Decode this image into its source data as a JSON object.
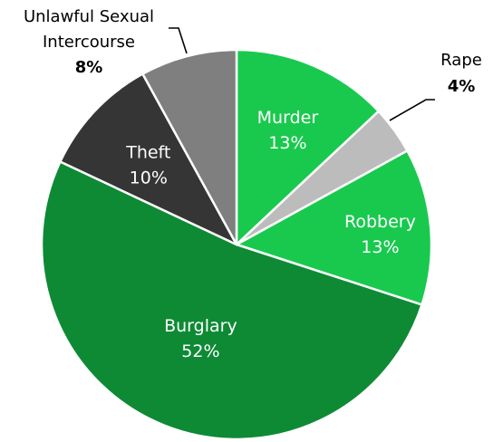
{
  "chart_data": {
    "type": "pie",
    "title": "",
    "start_angle_deg": 0,
    "direction": "clockwise",
    "slices": [
      {
        "label": "Murder",
        "value": 13,
        "value_label": "13%",
        "color": "#19c94e",
        "label_position": "inside"
      },
      {
        "label": "Rape",
        "value": 4,
        "value_label": "4%",
        "color": "#bcbcbc",
        "label_position": "outside"
      },
      {
        "label": "Robbery",
        "value": 13,
        "value_label": "13%",
        "color": "#19c94e",
        "label_position": "inside"
      },
      {
        "label": "Burglary",
        "value": 52,
        "value_label": "52%",
        "color": "#0e8a35",
        "label_position": "inside"
      },
      {
        "label": "Theft",
        "value": 10,
        "value_label": "10%",
        "color": "#353535",
        "label_position": "inside"
      },
      {
        "label": "Unlawful Sexual Intercourse",
        "label_lines": [
          "Unlawful Sexual",
          "Intercourse"
        ],
        "value": 8,
        "value_label": "8%",
        "color": "#7f7f7f",
        "label_position": "outside"
      }
    ]
  }
}
